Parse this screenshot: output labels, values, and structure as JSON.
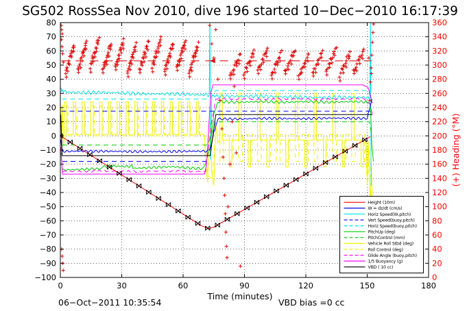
{
  "chart_data": {
    "type": "line",
    "title": "SG502 RossSea Nov 2010, dive 196 started 10−Dec−2010 16:17:39",
    "xlabel": "Time (minutes)",
    "right_axis_label": "(+) Heading (°M)",
    "timestamp_note": "06−Oct−2011 10:35:54",
    "vbd_bias_note": "VBD bias =0 cc",
    "xlim": [
      0,
      180
    ],
    "ylim_left": [
      -100,
      80
    ],
    "ylim_right": [
      0,
      360
    ],
    "x_ticks": [
      0,
      30,
      60,
      90,
      120,
      150,
      180
    ],
    "y_tick_step_left": 10,
    "y_tick_step_right": 20,
    "grid": true,
    "legend_position": "lower-right",
    "colors": {
      "red": "#ff0000",
      "blue": "#0000ee",
      "cyan": "#00e5e5",
      "green": "#00cc00",
      "yellow": "#f2f200",
      "magenta": "#ff00ff",
      "black": "#000000",
      "heading_marker": "#dd1111",
      "axis": "#000000"
    },
    "series": [
      {
        "label": "Height (10m)",
        "color": "#ff0000",
        "dash": "solid",
        "jitter": 0,
        "points": [
          [
            0,
            0
          ],
          [
            69,
            -63.5
          ],
          [
            72.5,
            -65.5
          ],
          [
            75,
            -64.5
          ],
          [
            151.5,
            -0.5
          ]
        ],
        "marker": "black-bowtie"
      },
      {
        "label": "W = dz/dt (cm/s)",
        "color": "#0000ee",
        "dash": "solid",
        "jitter": 1.1,
        "points": [
          [
            0.2,
            -3
          ],
          [
            1,
            -11
          ],
          [
            72,
            -11
          ],
          [
            73.5,
            -8
          ],
          [
            75,
            2
          ],
          [
            77,
            12
          ],
          [
            150,
            12.5
          ],
          [
            152.3,
            26
          ]
        ]
      },
      {
        "label": "Horiz Speed(W,pitch)",
        "color": "#00e5e5",
        "dash": "solid",
        "jitter": 1.6,
        "points": [
          [
            0.3,
            33
          ],
          [
            1,
            32
          ],
          [
            3,
            31
          ],
          [
            70,
            29
          ],
          [
            72.8,
            29
          ],
          [
            73.1,
            85
          ],
          [
            73.5,
            -18
          ],
          [
            74,
            29
          ],
          [
            76,
            28
          ],
          [
            150,
            27
          ],
          [
            151.3,
            27
          ],
          [
            151.6,
            85
          ],
          [
            151.9,
            -35
          ]
        ]
      },
      {
        "label": "Vert Speed(buoy,pitch)",
        "color": "#0000ee",
        "dash": "dashed",
        "jitter": 0,
        "segments": [
          [
            [
              1,
              -18
            ],
            [
              72.5,
              -18
            ]
          ],
          [
            [
              0.5,
              17.5
            ],
            [
              152,
              17.5
            ]
          ]
        ]
      },
      {
        "label": "Horiz Speed(buoy,pitch)",
        "color": "#00e5e5",
        "dash": "dashed",
        "jitter": 0,
        "points": [
          [
            0.8,
            26
          ],
          [
            73,
            26
          ],
          [
            76,
            32
          ],
          [
            150.5,
            32
          ],
          [
            152,
            26
          ]
        ]
      },
      {
        "label": "PitchUp (deg)",
        "color": "#00cc00",
        "dash": "solid",
        "jitter": 1.2,
        "points": [
          [
            0.3,
            -12
          ],
          [
            1,
            -24
          ],
          [
            20,
            -23
          ],
          [
            21,
            -21.5
          ],
          [
            35,
            -21.5
          ],
          [
            36,
            -23
          ],
          [
            55,
            -22
          ],
          [
            70,
            -23
          ],
          [
            73,
            -10
          ],
          [
            75,
            15
          ],
          [
            77,
            24
          ],
          [
            149,
            24
          ],
          [
            151.5,
            23
          ],
          [
            152.3,
            -8
          ],
          [
            153,
            -18
          ]
        ]
      },
      {
        "label": "PitchControl (mm)",
        "color": "#00cc00",
        "dash": "dashed",
        "jitter": 0,
        "points": [
          [
            1,
            -6.5
          ],
          [
            72,
            -6.5
          ],
          [
            76,
            10
          ],
          [
            151,
            10
          ],
          [
            152,
            2
          ]
        ]
      },
      {
        "label": "Vehicle Roll Stbd (deg)",
        "color": "#f2f200",
        "dash": "solid",
        "jitter": 0,
        "pulse": {
          "pre": [
            [
              0.3,
              20
            ],
            [
              0.6,
              -14
            ],
            [
              1,
              22
            ],
            [
              1.5,
              -8
            ],
            [
              2,
              1
            ]
          ],
          "phases": [
            {
              "t0": 2,
              "t1": 70,
              "base": 1,
              "high": 24,
              "period": 4.3,
              "width": 1.2
            },
            {
              "t0": 78,
              "t1": 149,
              "base": -3,
              "high": 30,
              "low": -22,
              "alt": true,
              "period": 4.6,
              "width": 1.2
            }
          ],
          "mid": [
            [
              70.5,
              0
            ],
            [
              71,
              -20
            ],
            [
              72,
              -33
            ],
            [
              73,
              10
            ],
            [
              74,
              -25
            ],
            [
              75,
              -35
            ],
            [
              76,
              8
            ],
            [
              77,
              -5
            ],
            [
              78,
              -3
            ]
          ],
          "end": [
            [
              149.5,
              -4
            ],
            [
              150,
              -30
            ],
            [
              150.6,
              -4
            ],
            [
              151,
              -32
            ],
            [
              151.5,
              -47
            ],
            [
              152,
              -20
            ],
            [
              152.5,
              -48
            ]
          ]
        }
      },
      {
        "label": "Roll Control (deg)",
        "color": "#f2f200",
        "dash": "dashed",
        "jitter": 0,
        "pulse": {
          "pre": [
            [
              0.5,
              0
            ]
          ],
          "phases": [
            {
              "t0": 2,
              "t1": 70,
              "base": 0,
              "high": 21,
              "period": 4.3,
              "width": 1.7
            },
            {
              "t0": 78,
              "t1": 149,
              "base": 1,
              "high": -18,
              "period": 4.6,
              "width": 1.8
            }
          ],
          "mid": [
            [
              70.5,
              0
            ],
            [
              72,
              -28
            ],
            [
              74,
              -30
            ],
            [
              76,
              0
            ]
          ],
          "end": [
            [
              150,
              -35
            ],
            [
              151,
              -10
            ],
            [
              152,
              -44
            ]
          ]
        }
      },
      {
        "label": "Glide Angle (buoy,pitch)",
        "color": "#ff00ff",
        "dash": "dashed",
        "jitter": 0.9,
        "points": [
          [
            1,
            -25
          ],
          [
            71,
            -25
          ],
          [
            74,
            10
          ],
          [
            76,
            26
          ],
          [
            149,
            26
          ],
          [
            151.5,
            22
          ],
          [
            152.5,
            15
          ]
        ]
      },
      {
        "label": "1/5 Buoyancy (g)",
        "color": "#ff00ff",
        "dash": "solid",
        "jitter": 0,
        "points": [
          [
            0.3,
            -8
          ],
          [
            1,
            -27
          ],
          [
            70.5,
            -27
          ],
          [
            71.5,
            -20
          ],
          [
            73.5,
            30
          ],
          [
            74.5,
            36
          ],
          [
            148,
            36
          ],
          [
            150.5,
            34
          ],
          [
            152.5,
            23
          ]
        ]
      },
      {
        "label": "VBD ( 10 cc)",
        "color": "#000000",
        "dash": "solid",
        "jitter": 0,
        "points": [
          [
            0.2,
            15
          ],
          [
            0.9,
            -14
          ],
          [
            73.2,
            -14
          ],
          [
            76,
            15
          ],
          [
            152.5,
            15
          ]
        ]
      }
    ],
    "depth_markers": {
      "interval_minutes": 4.8,
      "t_end": 151.5,
      "shape": "bowtie",
      "color": "#000000"
    },
    "heading_markers": {
      "color": "#dd1111",
      "marker": "+",
      "desired_heading_left_axis": 53,
      "desired_heading_deg_m": 306,
      "ramps_descent": {
        "t_start": 2.5,
        "count": 11,
        "spacing": 6.05,
        "duration": 4.3,
        "v_start": 47,
        "v_end": 67,
        "points_per_ramp": 15
      },
      "ramps_climb": {
        "t_start": 83,
        "count": 10,
        "spacing": 6.7,
        "duration": 5.0,
        "v_start": 44,
        "v_end": 60,
        "points_per_ramp": 12
      },
      "extra_points": [
        [
          0.4,
          78
        ],
        [
          0.6,
          75
        ],
        [
          0.9,
          72
        ],
        [
          0.5,
          68
        ],
        [
          0.8,
          63
        ],
        [
          1.1,
          58
        ],
        [
          1.5,
          52
        ],
        [
          0.6,
          -80
        ],
        [
          0.9,
          -85
        ],
        [
          1.2,
          -90
        ],
        [
          1.4,
          -95
        ],
        [
          73,
          78
        ],
        [
          76,
          75
        ],
        [
          74,
          65
        ],
        [
          75,
          55
        ],
        [
          77,
          40
        ],
        [
          78,
          25
        ],
        [
          79,
          5
        ],
        [
          79.5,
          -15
        ],
        [
          80,
          -30
        ],
        [
          80.3,
          -42
        ],
        [
          80.6,
          -55
        ],
        [
          80.9,
          -68
        ],
        [
          81.2,
          -78
        ],
        [
          81.5,
          -86
        ],
        [
          82,
          -50
        ],
        [
          83,
          -20
        ],
        [
          84,
          10
        ],
        [
          85,
          35
        ],
        [
          86,
          -12
        ],
        [
          88,
          -92
        ],
        [
          150.8,
          55
        ],
        [
          151.2,
          25
        ],
        [
          151.6,
          38
        ],
        [
          151.9,
          48
        ],
        [
          152,
          44
        ],
        [
          152.2,
          57
        ],
        [
          152.5,
          66
        ],
        [
          152.8,
          73
        ],
        [
          153.1,
          79
        ]
      ]
    }
  }
}
